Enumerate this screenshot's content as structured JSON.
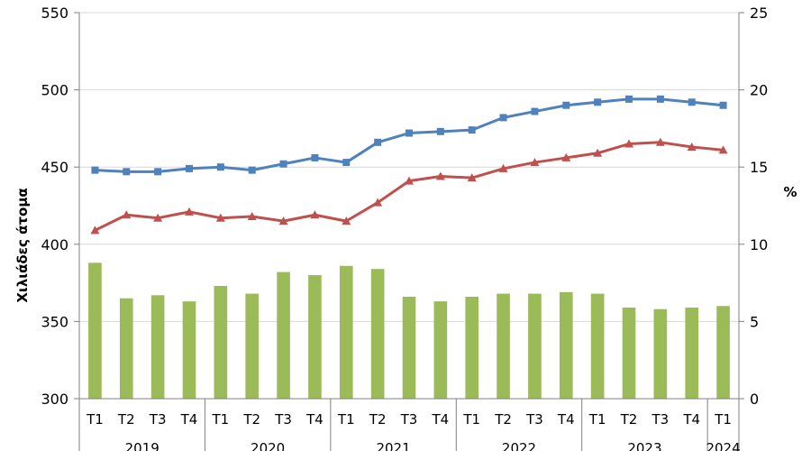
{
  "chart_data": {
    "type": "bar+line",
    "title": "",
    "ylabel_left": "Χιλιάδες άτομα",
    "ylabel_right": "%",
    "ylim_left": [
      300,
      550
    ],
    "yticks_left": [
      300,
      350,
      400,
      450,
      500,
      550
    ],
    "ylim_right": [
      0,
      25
    ],
    "yticks_right": [
      0,
      5,
      10,
      15,
      20,
      25
    ],
    "grid": "horizontal",
    "legend": "none",
    "categories": [
      "T1",
      "T2",
      "T3",
      "T4",
      "T1",
      "T2",
      "T3",
      "T4",
      "T1",
      "T2",
      "T3",
      "T4",
      "T1",
      "T2",
      "T3",
      "T4",
      "T1",
      "T2",
      "T3",
      "T4",
      "T1"
    ],
    "years": [
      {
        "label": "2019",
        "count": 4
      },
      {
        "label": "2020",
        "count": 4
      },
      {
        "label": "2021",
        "count": 4
      },
      {
        "label": "2022",
        "count": 4
      },
      {
        "label": "2023",
        "count": 4
      },
      {
        "label": "2024",
        "count": 1
      }
    ],
    "series": [
      {
        "type": "bar",
        "axis": "right",
        "color": "#9bbb59",
        "values": [
          8.8,
          6.5,
          6.7,
          6.3,
          7.3,
          6.8,
          8.2,
          8.0,
          8.6,
          8.4,
          6.6,
          6.3,
          6.6,
          6.8,
          6.8,
          6.9,
          6.8,
          5.9,
          5.8,
          5.9,
          6.0
        ]
      },
      {
        "type": "line",
        "axis": "left",
        "color": "#4f81bd",
        "marker": "square",
        "values": [
          448,
          447,
          447,
          449,
          450,
          448,
          452,
          456,
          453,
          466,
          472,
          473,
          474,
          482,
          486,
          490,
          492,
          494,
          494,
          492,
          490
        ]
      },
      {
        "type": "line",
        "axis": "left",
        "color": "#c0504d",
        "marker": "triangle",
        "values": [
          409,
          419,
          417,
          421,
          417,
          418,
          415,
          419,
          415,
          427,
          441,
          444,
          443,
          449,
          453,
          456,
          459,
          465,
          466,
          463,
          461
        ]
      }
    ]
  }
}
